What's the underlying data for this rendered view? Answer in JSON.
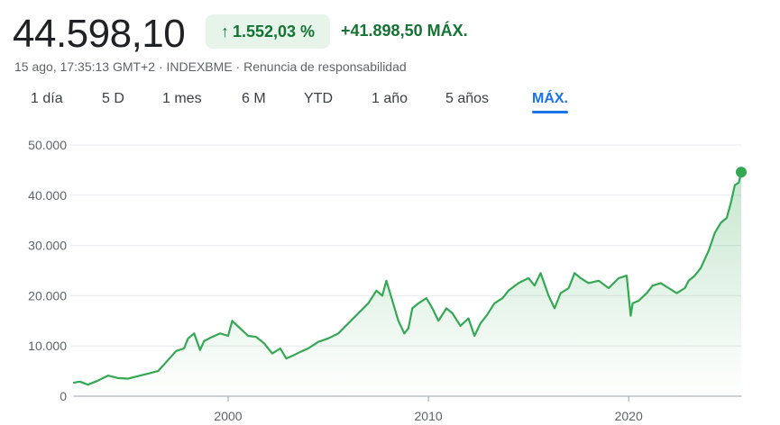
{
  "header": {
    "price": "44.598,10",
    "change_pct": "1.552,03 %",
    "change_abs": "+41.898,50",
    "period_label": "MÁX.",
    "up_arrow": "↑"
  },
  "meta": {
    "timestamp": "15 ago, 17:35:13 GMT+2",
    "exchange": "INDEXBME",
    "disclaimer": "Renuncia de responsabilidad",
    "separator": " · "
  },
  "tabs": [
    {
      "label": "1 día",
      "active": false
    },
    {
      "label": "5 D",
      "active": false
    },
    {
      "label": "1 mes",
      "active": false
    },
    {
      "label": "6 M",
      "active": false
    },
    {
      "label": "YTD",
      "active": false
    },
    {
      "label": "1 año",
      "active": false
    },
    {
      "label": "5 años",
      "active": false
    },
    {
      "label": "MÁX.",
      "active": true
    }
  ],
  "colors": {
    "line": "#34a853",
    "positive_text": "#137333",
    "badge_bg": "#e6f4ea",
    "active_tab": "#1a73e8",
    "grid": "#e8eaed"
  },
  "chart_data": {
    "type": "area",
    "title": "",
    "xlabel": "",
    "ylabel": "",
    "ylim": [
      0,
      50000
    ],
    "xlim": [
      1992.3,
      2025.62
    ],
    "y_ticks": [
      0,
      10000,
      20000,
      30000,
      40000,
      50000
    ],
    "y_tick_labels": [
      "0",
      "10.000",
      "20.000",
      "30.000",
      "40.000",
      "50.000"
    ],
    "x_ticks": [
      2000,
      2010,
      2020
    ],
    "x_tick_labels": [
      "2000",
      "2010",
      "2020"
    ],
    "grid": true,
    "legend": "none",
    "series": [
      {
        "x": [
          1992.3,
          1992.6,
          1993.0,
          1993.5,
          1994.0,
          1994.5,
          1995.0,
          1995.5,
          1996.0,
          1996.5,
          1997.0,
          1997.4,
          1997.8,
          1998.0,
          1998.3,
          1998.6,
          1998.8,
          1999.2,
          1999.6,
          2000.0,
          2000.2,
          2000.6,
          2001.0,
          2001.4,
          2001.8,
          2002.2,
          2002.6,
          2002.9,
          2003.3,
          2003.7,
          2004.0,
          2004.5,
          2005.0,
          2005.5,
          2006.0,
          2006.5,
          2007.0,
          2007.4,
          2007.7,
          2007.9,
          2008.2,
          2008.5,
          2008.8,
          2009.0,
          2009.2,
          2009.5,
          2009.9,
          2010.2,
          2010.5,
          2010.9,
          2011.2,
          2011.6,
          2012.0,
          2012.3,
          2012.6,
          2012.9,
          2013.3,
          2013.7,
          2014.0,
          2014.5,
          2015.0,
          2015.3,
          2015.6,
          2016.0,
          2016.3,
          2016.6,
          2017.0,
          2017.3,
          2017.6,
          2018.0,
          2018.5,
          2019.0,
          2019.5,
          2019.9,
          2020.1,
          2020.2,
          2020.5,
          2020.9,
          2021.2,
          2021.6,
          2022.0,
          2022.4,
          2022.8,
          2023.0,
          2023.3,
          2023.6,
          2024.0,
          2024.3,
          2024.6,
          2024.9,
          2025.1,
          2025.3,
          2025.5,
          2025.62
        ],
        "values": [
          2700,
          2900,
          2300,
          3100,
          4100,
          3600,
          3500,
          4000,
          4500,
          5000,
          7200,
          9000,
          9500,
          11500,
          12500,
          9200,
          11000,
          11800,
          12500,
          12000,
          15000,
          13500,
          12000,
          11800,
          10500,
          8500,
          9500,
          7500,
          8200,
          9000,
          9500,
          10800,
          11500,
          12500,
          14500,
          16500,
          18500,
          21000,
          20000,
          23000,
          19000,
          15000,
          12500,
          13500,
          17500,
          18500,
          19500,
          17500,
          15000,
          17500,
          16500,
          14000,
          15500,
          12000,
          14500,
          16000,
          18500,
          19500,
          21000,
          22500,
          23500,
          22000,
          24500,
          20000,
          17500,
          20500,
          21500,
          24500,
          23500,
          22500,
          23000,
          21500,
          23500,
          24000,
          16000,
          18500,
          19000,
          20500,
          22000,
          22500,
          21500,
          20500,
          21500,
          23000,
          24000,
          25500,
          29000,
          32500,
          34500,
          35500,
          38500,
          42000,
          42500,
          44598
        ]
      }
    ]
  }
}
